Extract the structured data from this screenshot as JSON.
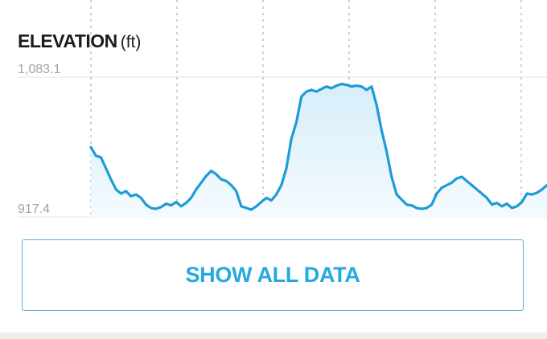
{
  "header": {
    "title": "ELEVATION",
    "unit": "(ft)"
  },
  "button": {
    "label": "SHOW ALL DATA"
  },
  "colors": {
    "line": "#1e9bd7",
    "fill_top": "#d6eef9",
    "fill_bottom": "#f4fbfe",
    "grid": "#bdbdbd"
  },
  "chart_data": {
    "type": "area",
    "title": "ELEVATION (ft)",
    "ytick_labels": [
      "1,083.1",
      "917.4"
    ],
    "ylim": [
      917.4,
      1083.1
    ],
    "grid": true,
    "values": [
      1000,
      990,
      988,
      975,
      962,
      950,
      945,
      948,
      942,
      944,
      940,
      932,
      928,
      927,
      929,
      933,
      931,
      935,
      930,
      934,
      940,
      950,
      958,
      966,
      972,
      968,
      962,
      960,
      955,
      948,
      930,
      928,
      926,
      930,
      935,
      940,
      937,
      944,
      955,
      975,
      1010,
      1030,
      1060,
      1066,
      1068,
      1066,
      1069,
      1072,
      1070,
      1073,
      1075,
      1074,
      1072,
      1073,
      1072,
      1068,
      1072,
      1050,
      1020,
      995,
      965,
      944,
      938,
      932,
      931,
      928,
      927,
      928,
      932,
      945,
      952,
      955,
      958,
      963,
      965,
      960,
      955,
      950,
      945,
      940,
      932,
      934,
      930,
      933,
      928,
      930,
      935,
      945,
      944,
      946,
      950,
      955
    ]
  }
}
